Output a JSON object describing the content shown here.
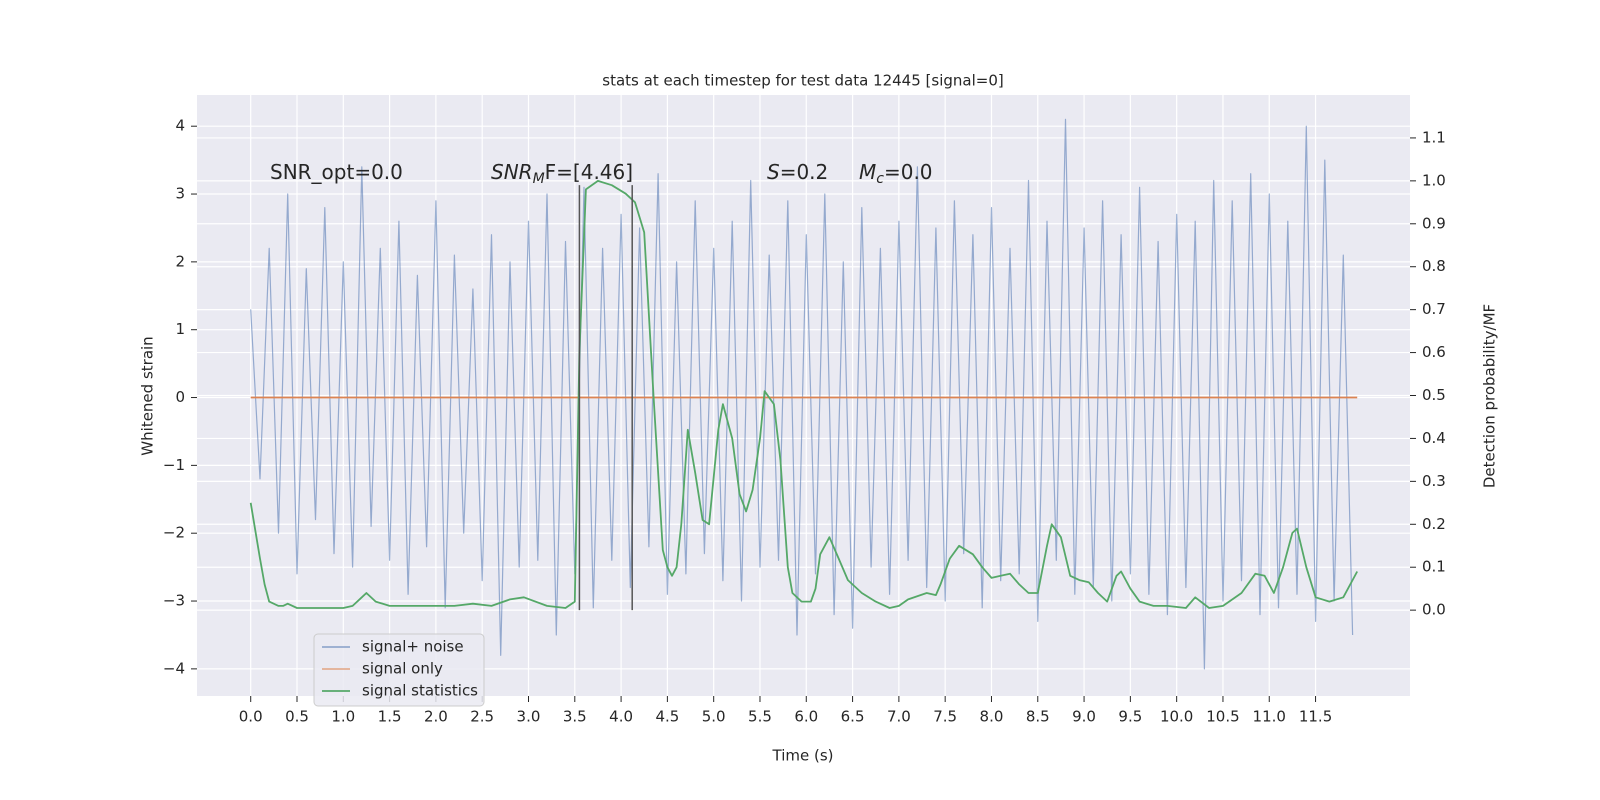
{
  "chart_data": {
    "type": "line",
    "title": "stats at each timestep for test data 12445 [signal=0]",
    "x_label": "Time (s)",
    "y_label": "Whitened strain",
    "y2_label": "Detection probability/MF",
    "xlim": [
      -0.58,
      12.52
    ],
    "ylim": [
      -4.4,
      4.46
    ],
    "y2lim": [
      -0.2,
      1.2
    ],
    "xticks": [
      {
        "value": 0,
        "label": "0.0"
      },
      0.5,
      {
        "value": 1,
        "label": "1.0"
      },
      1.5,
      {
        "value": 2,
        "label": "2.0"
      },
      2.5,
      {
        "value": 3,
        "label": "3.0"
      },
      3.5,
      {
        "value": 4,
        "label": "4.0"
      },
      4.5,
      {
        "value": 5,
        "label": "5.0"
      },
      5.5,
      {
        "value": 6,
        "label": "6.0"
      },
      6.5,
      {
        "value": 7,
        "label": "7.0"
      },
      7.5,
      {
        "value": 8,
        "label": "8.0"
      },
      8.5,
      {
        "value": 9,
        "label": "9.0"
      },
      9.5,
      {
        "value": 10,
        "label": "10.0"
      },
      10.5,
      {
        "value": 11,
        "label": "11.0"
      },
      11.5
    ],
    "yticks": [
      {
        "value": -4,
        "label": "−4"
      },
      {
        "value": -3,
        "label": "−3"
      },
      {
        "value": -2,
        "label": "−2"
      },
      {
        "value": -1,
        "label": "−1"
      },
      0,
      1,
      2,
      3,
      4
    ],
    "y2ticks": [
      {
        "value": 0,
        "label": "0.0"
      },
      0.1,
      0.2,
      0.3,
      0.4,
      0.5,
      0.6,
      0.7,
      0.8,
      0.9,
      {
        "value": 1,
        "label": "1.0"
      },
      1.1
    ],
    "grid": true,
    "legend": "lower left",
    "series": [
      {
        "name": "signal+ noise",
        "color": "#4c72b0",
        "x": [
          0,
          0.1,
          0.2,
          0.3,
          0.4,
          0.5,
          0.6,
          0.7,
          0.8,
          0.9,
          1,
          1.1,
          1.2,
          1.3,
          1.4,
          1.5,
          1.6,
          1.7,
          1.8,
          1.9,
          2,
          2.1,
          2.2,
          2.3,
          2.4,
          2.5,
          2.6,
          2.7,
          2.8,
          2.9,
          3,
          3.1,
          3.2,
          3.3,
          3.4,
          3.5,
          3.6,
          3.7,
          3.8,
          3.9,
          4,
          4.1,
          4.2,
          4.3,
          4.4,
          4.5,
          4.6,
          4.7,
          4.8,
          4.9,
          5,
          5.1,
          5.2,
          5.3,
          5.4,
          5.5,
          5.6,
          5.7,
          5.8,
          5.9,
          6,
          6.1,
          6.2,
          6.3,
          6.4,
          6.5,
          6.6,
          6.7,
          6.8,
          6.9,
          7,
          7.1,
          7.2,
          7.3,
          7.4,
          7.5,
          7.6,
          7.7,
          7.8,
          7.9,
          8,
          8.1,
          8.2,
          8.3,
          8.4,
          8.5,
          8.6,
          8.7,
          8.8,
          8.9,
          9,
          9.1,
          9.2,
          9.3,
          9.4,
          9.5,
          9.6,
          9.7,
          9.8,
          9.9,
          10,
          10.1,
          10.2,
          10.3,
          10.4,
          10.5,
          10.6,
          10.7,
          10.8,
          10.9,
          11,
          11.1,
          11.2,
          11.3,
          11.4,
          11.5,
          11.6,
          11.7,
          11.8,
          11.9
        ],
        "values": [
          1.3,
          -1.2,
          2.2,
          -2.0,
          3.0,
          -2.6,
          1.9,
          -1.8,
          2.8,
          -2.3,
          2.0,
          -2.5,
          3.4,
          -1.9,
          2.2,
          -2.4,
          2.6,
          -2.9,
          1.8,
          -2.2,
          2.9,
          -3.1,
          2.1,
          -2.0,
          1.6,
          -2.7,
          2.4,
          -3.8,
          2.0,
          -2.5,
          2.6,
          -2.4,
          3.0,
          -3.5,
          2.3,
          -2.6,
          3.1,
          -3.1,
          2.2,
          -2.4,
          2.7,
          -2.8,
          2.5,
          -2.2,
          3.3,
          -2.9,
          2.0,
          -2.6,
          2.9,
          -2.3,
          2.2,
          -2.7,
          2.6,
          -3.0,
          3.2,
          -2.5,
          2.1,
          -2.4,
          2.9,
          -3.5,
          2.4,
          -2.6,
          3.0,
          -3.2,
          2.0,
          -3.4,
          2.8,
          -2.5,
          2.2,
          -2.9,
          2.6,
          -2.4,
          3.4,
          -2.8,
          2.5,
          -3.0,
          2.9,
          -2.3,
          2.4,
          -3.1,
          2.8,
          -2.7,
          2.2,
          -2.6,
          3.2,
          -3.3,
          2.6,
          -2.4,
          4.1,
          -2.9,
          2.5,
          -2.8,
          2.9,
          -3.0,
          2.4,
          -2.6,
          3.1,
          -2.9,
          2.3,
          -3.2,
          2.7,
          -2.8,
          2.6,
          -4.0,
          3.2,
          -3.0,
          2.9,
          -2.7,
          3.3,
          -3.2,
          3.0,
          -3.1,
          2.6,
          -2.9,
          4.0,
          -3.3,
          3.5,
          -3.0,
          2.1,
          -3.5
        ]
      },
      {
        "name": "signal only",
        "color": "#dd8452",
        "x": [
          0,
          11.95
        ],
        "values": [
          0,
          0
        ]
      },
      {
        "name": "signal statistics",
        "color": "#55a868",
        "axis": "y2",
        "x": [
          0,
          0.1,
          0.15,
          0.2,
          0.3,
          0.35,
          0.4,
          0.5,
          0.6,
          0.8,
          1.0,
          1.1,
          1.2,
          1.25,
          1.35,
          1.5,
          1.7,
          2.0,
          2.2,
          2.4,
          2.6,
          2.8,
          2.95,
          3.2,
          3.4,
          3.5,
          3.55,
          3.62,
          3.75,
          3.9,
          4.05,
          4.15,
          4.25,
          4.35,
          4.45,
          4.5,
          4.55,
          4.6,
          4.65,
          4.72,
          4.8,
          4.88,
          4.95,
          5.05,
          5.1,
          5.2,
          5.28,
          5.35,
          5.42,
          5.5,
          5.55,
          5.65,
          5.72,
          5.8,
          5.85,
          5.95,
          6.05,
          6.1,
          6.15,
          6.25,
          6.35,
          6.45,
          6.6,
          6.75,
          6.9,
          7.0,
          7.1,
          7.3,
          7.4,
          7.45,
          7.55,
          7.65,
          7.8,
          7.9,
          8.0,
          8.1,
          8.2,
          8.3,
          8.4,
          8.5,
          8.6,
          8.65,
          8.75,
          8.85,
          8.95,
          9.05,
          9.15,
          9.25,
          9.35,
          9.4,
          9.5,
          9.6,
          9.75,
          9.9,
          10.1,
          10.2,
          10.35,
          10.5,
          10.7,
          10.85,
          10.95,
          11.05,
          11.15,
          11.25,
          11.3,
          11.4,
          11.5,
          11.65,
          11.8,
          11.95
        ],
        "values": [
          0.25,
          0.12,
          0.06,
          0.02,
          0.01,
          0.01,
          0.015,
          0.005,
          0.005,
          0.005,
          0.005,
          0.01,
          0.03,
          0.04,
          0.02,
          0.01,
          0.01,
          0.01,
          0.01,
          0.015,
          0.01,
          0.025,
          0.03,
          0.01,
          0.005,
          0.02,
          0.6,
          0.98,
          1.0,
          0.99,
          0.97,
          0.95,
          0.88,
          0.5,
          0.14,
          0.1,
          0.08,
          0.1,
          0.2,
          0.42,
          0.32,
          0.21,
          0.2,
          0.42,
          0.48,
          0.4,
          0.27,
          0.23,
          0.28,
          0.4,
          0.51,
          0.48,
          0.35,
          0.1,
          0.04,
          0.02,
          0.02,
          0.05,
          0.13,
          0.17,
          0.12,
          0.07,
          0.04,
          0.02,
          0.005,
          0.01,
          0.025,
          0.04,
          0.035,
          0.06,
          0.12,
          0.15,
          0.13,
          0.1,
          0.075,
          0.08,
          0.085,
          0.06,
          0.04,
          0.04,
          0.15,
          0.2,
          0.17,
          0.08,
          0.07,
          0.065,
          0.04,
          0.02,
          0.08,
          0.09,
          0.05,
          0.02,
          0.01,
          0.01,
          0.005,
          0.03,
          0.005,
          0.01,
          0.04,
          0.085,
          0.08,
          0.04,
          0.1,
          0.18,
          0.19,
          0.1,
          0.03,
          0.02,
          0.03,
          0.09
        ]
      }
    ],
    "vlines": {
      "x": [
        3.55,
        4.12
      ],
      "ymin": 0,
      "ymax": 0.99,
      "axis": "y2",
      "color": "#555555"
    },
    "annotations": [
      [
        {
          "text": "SNR_opt=0.0"
        }
      ],
      [
        {
          "text": "SNR",
          "italic": true
        },
        {
          "text": "M",
          "italic": true,
          "sub": true
        },
        {
          "text": "F=[4.46]"
        }
      ],
      [
        {
          "text": "S",
          "italic": true
        },
        {
          "text": "=0.2"
        }
      ],
      [
        {
          "text": "M",
          "italic": true
        },
        {
          "text": "c",
          "italic": true,
          "sub": true
        },
        {
          "text": "=0.0"
        }
      ]
    ]
  }
}
